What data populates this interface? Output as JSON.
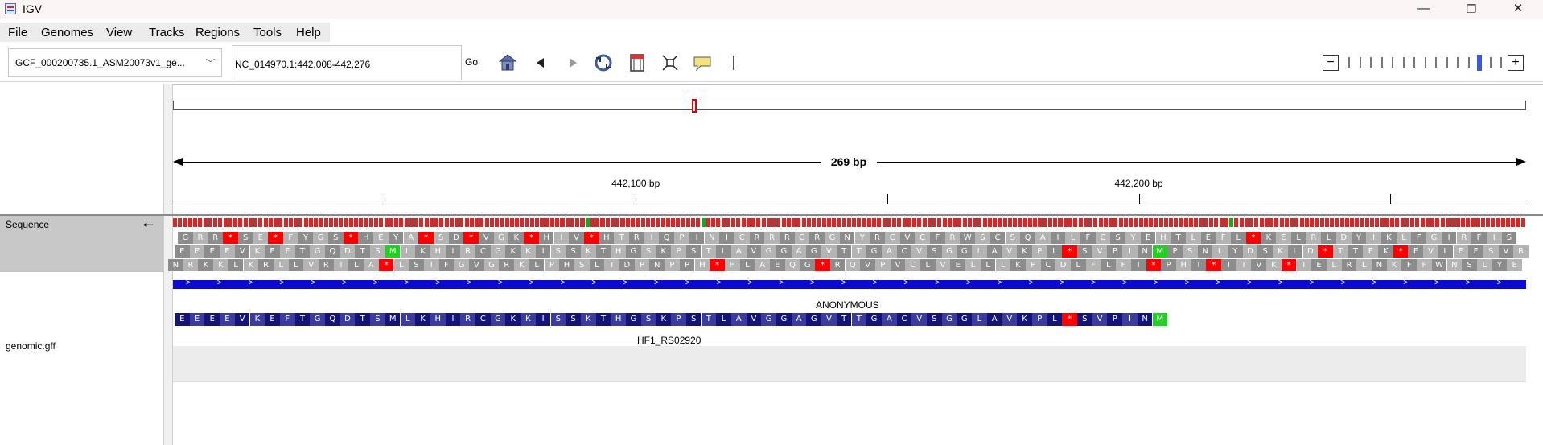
{
  "window": {
    "title": "IGV",
    "minimize": "—",
    "restore": "❐",
    "close": "✕"
  },
  "menu": [
    "File",
    "Genomes",
    "View",
    "Tracks",
    "Regions",
    "Tools",
    "Help"
  ],
  "toolbar": {
    "genome": "GCF_000200735.1_ASM20073v1_ge...",
    "locus": "NC_014970.1:442,008-442,276",
    "go_label": "Go",
    "icons": [
      "home-icon",
      "back-arrow-icon",
      "forward-arrow-icon",
      "refresh-icon",
      "ruler-region-icon",
      "resize-icon",
      "popup-text-icon",
      "roi-bar-icon"
    ]
  },
  "zoom": {
    "minus": "−",
    "plus": "+",
    "level_index": 12,
    "levels": 15
  },
  "ruler": {
    "span_label": "269 bp",
    "ticks": [
      {
        "bp": 442050,
        "label": ""
      },
      {
        "bp": 442100,
        "label": "442,100 bp"
      },
      {
        "bp": 442150,
        "label": ""
      },
      {
        "bp": 442200,
        "label": "442,200 bp"
      },
      {
        "bp": 442250,
        "label": ""
      }
    ],
    "start": 442008,
    "end": 442276
  },
  "tracks": {
    "sequence_label": "Sequence",
    "sequence_arrow": "🠔",
    "gff_label": "genomic.gff"
  },
  "sequence": {
    "frame1": "GRR*SE*FYGS*HEYA*SD*VGK*HIV*HTRIQPINICRRRGRGNYRCVCFRWSCSQAILFCSYEHTLEFL*KELRLDYIKLFGIRFIS",
    "frame2": "EEEEVKEFTGQDTSMLKHIRCGKKISSKTHGSKPSTLAVGGAGVTTGACVSGGLAVKPL*SVPINMPSNLYDSKLD*TTFK*FVLEFSVR",
    "frame3": "NRKKLKRLLVRILA*LSIFGVGRKLPHSLTDPNPPH*HLAEQG*RQVPVCLVELLLKPCDLFLFI*PHT*ITVK*TELRLNKFFWNSLYE"
  },
  "feature": {
    "name": "ANONYMOUS",
    "id": "HF1_RS02920",
    "aa": "EEEEVKEFTGQDTSMLKHIRCGKKISSKTHGSKPSTLAVGGAGVTTGACVSGGLAVKPL*SVPINM"
  },
  "colors": {
    "aa_dark": "#8c8c8c",
    "aa_light": "#b4b4b4",
    "stop": "#ff0000",
    "start": "#1ed21e",
    "feature_dark": "#141478",
    "feature_light": "#3c3ca0",
    "strand": "#0a0ad0"
  }
}
